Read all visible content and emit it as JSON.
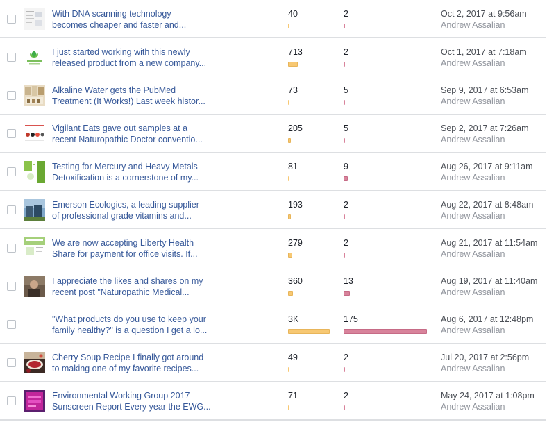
{
  "posts": [
    {
      "line1": "With DNA scanning technology",
      "line2": "becomes cheaper and faster and...",
      "reach": "40",
      "reach_value": 40,
      "engagement": "2",
      "engagement_value": 2,
      "date": "Oct 2, 2017 at 9:56am",
      "author": "Andrew Assalian",
      "thumb": "dna-article"
    },
    {
      "line1": "I just started working with this newly",
      "line2": "released product from a new company...",
      "reach": "713",
      "reach_value": 713,
      "engagement": "2",
      "engagement_value": 2,
      "date": "Oct 1, 2017 at 7:18am",
      "author": "Andrew Assalian",
      "thumb": "product-logo"
    },
    {
      "line1": "Alkaline Water gets the PubMed",
      "line2": "Treatment (It Works!) Last week histor...",
      "reach": "73",
      "reach_value": 73,
      "engagement": "5",
      "engagement_value": 5,
      "date": "Sep 9, 2017 at 6:53am",
      "author": "Andrew Assalian",
      "thumb": "alkaline-water"
    },
    {
      "line1": "Vigilant Eats gave out samples at a",
      "line2": "recent Naturopathic Doctor conventio...",
      "reach": "205",
      "reach_value": 205,
      "engagement": "5",
      "engagement_value": 5,
      "date": "Sep 2, 2017 at 7:26am",
      "author": "Andrew Assalian",
      "thumb": "vigilant-eats"
    },
    {
      "line1": "Testing for Mercury and Heavy Metals",
      "line2": "Detoxification is a cornerstone of my...",
      "reach": "81",
      "reach_value": 81,
      "engagement": "9",
      "engagement_value": 9,
      "date": "Aug 26, 2017 at 9:11am",
      "author": "Andrew Assalian",
      "thumb": "mercury-testing"
    },
    {
      "line1": "Emerson Ecologics, a leading supplier",
      "line2": "of professional grade vitamins and...",
      "reach": "193",
      "reach_value": 193,
      "engagement": "2",
      "engagement_value": 2,
      "date": "Aug 22, 2017 at 8:48am",
      "author": "Andrew Assalian",
      "thumb": "emerson-ecologics"
    },
    {
      "line1": "We are now accepting Liberty Health",
      "line2": "Share for payment for office visits. If...",
      "reach": "279",
      "reach_value": 279,
      "engagement": "2",
      "engagement_value": 2,
      "date": "Aug 21, 2017 at 11:54am",
      "author": "Andrew Assalian",
      "thumb": "liberty-health"
    },
    {
      "line1": "I appreciate the likes and shares on my",
      "line2": "recent post \"Naturopathic Medical...",
      "reach": "360",
      "reach_value": 360,
      "engagement": "13",
      "engagement_value": 13,
      "date": "Aug 19, 2017 at 11:40am",
      "author": "Andrew Assalian",
      "thumb": "photo"
    },
    {
      "line1": "\"What products do you use to keep your",
      "line2": "family healthy?\" is a question I get a lo...",
      "reach": "3K",
      "reach_value": 3000,
      "engagement": "175",
      "engagement_value": 175,
      "date": "Aug 6, 2017 at 12:48pm",
      "author": "Andrew Assalian",
      "thumb": "none"
    },
    {
      "line1": "Cherry Soup Recipe I finally got around",
      "line2": "to making one of my favorite recipes...",
      "reach": "49",
      "reach_value": 49,
      "engagement": "2",
      "engagement_value": 2,
      "date": "Jul 20, 2017 at 2:56pm",
      "author": "Andrew Assalian",
      "thumb": "cherry-soup"
    },
    {
      "line1": "Environmental Working Group 2017",
      "line2": "Sunscreen Report Every year the EWG...",
      "reach": "71",
      "reach_value": 71,
      "engagement": "2",
      "engagement_value": 2,
      "date": "May 24, 2017 at 1:08pm",
      "author": "Andrew Assalian",
      "thumb": "sunscreen-report"
    }
  ],
  "colors": {
    "reach_bar": "#f7c873",
    "engagement_bar": "#d8839b",
    "link": "#365899",
    "border": "#dddfe2"
  }
}
